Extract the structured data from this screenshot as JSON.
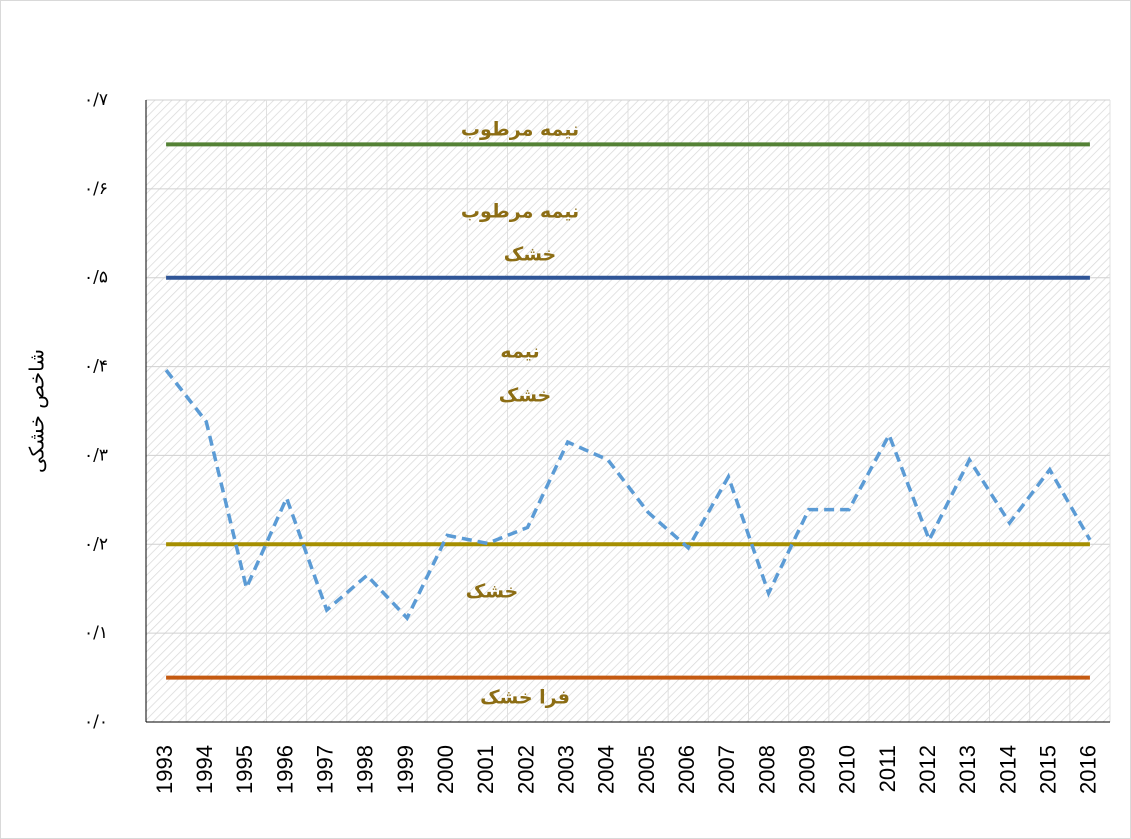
{
  "chart_data": {
    "type": "line",
    "y_axis_label": "شاخص خشکی",
    "categories": [
      "1993",
      "1994",
      "1995",
      "1996",
      "1997",
      "1998",
      "1999",
      "2000",
      "2001",
      "2002",
      "2003",
      "2004",
      "2005",
      "2006",
      "2007",
      "2008",
      "2009",
      "2010",
      "2011",
      "2012",
      "2013",
      "2014",
      "2015",
      "2016"
    ],
    "series": [
      {
        "color": "#5b9bd5",
        "values": [
          0.396,
          0.338,
          0.151,
          0.252,
          0.126,
          0.165,
          0.117,
          0.21,
          0.201,
          0.219,
          0.315,
          0.295,
          0.236,
          0.196,
          0.276,
          0.145,
          0.239,
          0.239,
          0.323,
          0.205,
          0.295,
          0.224,
          0.284,
          0.205
        ]
      }
    ],
    "reference_lines": [
      {
        "value": 0.65,
        "color": "#548235"
      },
      {
        "value": 0.5,
        "color": "#2f5597"
      },
      {
        "value": 0.2,
        "color": "#a68f00"
      },
      {
        "value": 0.05,
        "color": "#c55a11"
      }
    ],
    "annotations": [
      "نیمه مرطوب",
      "نیمه مرطوب",
      "خشک",
      "نیمه",
      "خشک",
      "خشک",
      "فرا خشک"
    ],
    "ylim": [
      0,
      0.7
    ],
    "yticks": [
      {
        "value": 0,
        "label": "۰/۰"
      },
      {
        "value": 0.1,
        "label": "۰/۱"
      },
      {
        "value": 0.2,
        "label": "۰/۲"
      },
      {
        "value": 0.3,
        "label": "۰/۳"
      },
      {
        "value": 0.4,
        "label": "۰/۴"
      },
      {
        "value": 0.5,
        "label": "۰/۵"
      },
      {
        "value": 0.6,
        "label": "۰/۶"
      },
      {
        "value": 0.7,
        "label": "۰/۷"
      }
    ],
    "grid": true
  }
}
